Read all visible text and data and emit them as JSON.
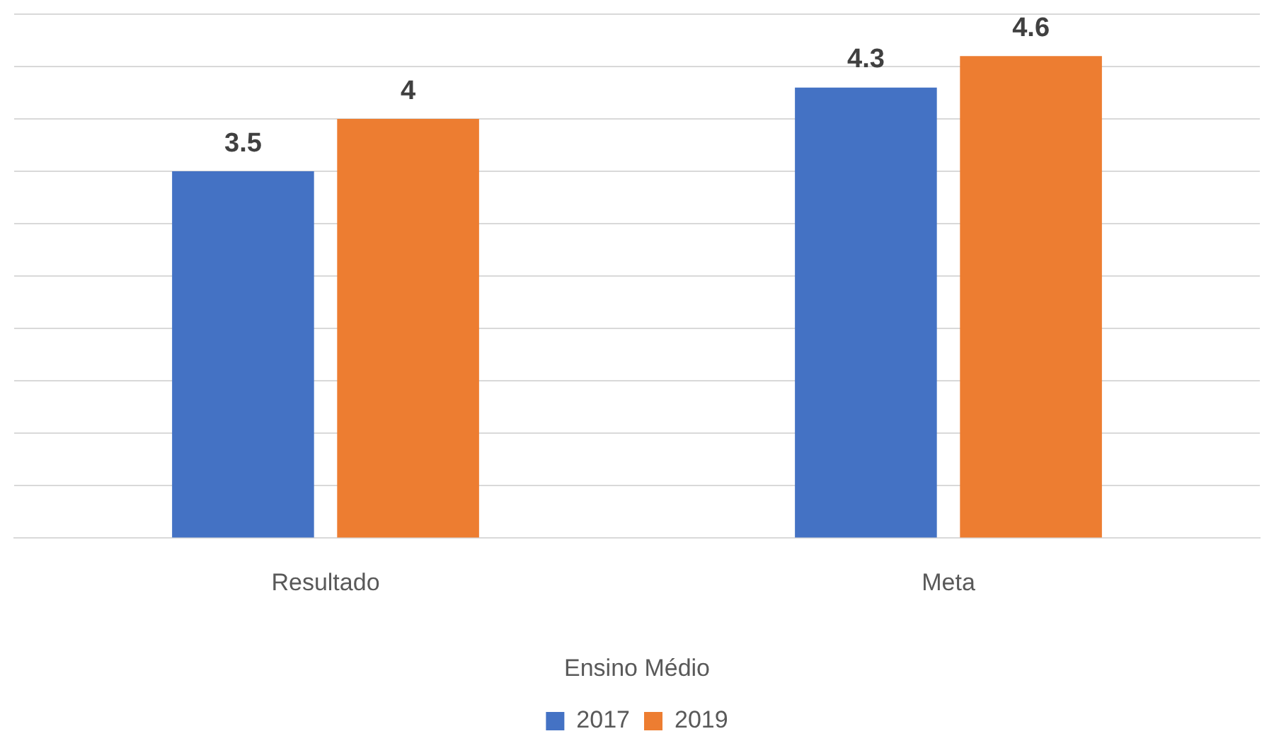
{
  "chart_data": {
    "type": "bar",
    "xlabel": "Ensino Médio",
    "categories": [
      "Resultado",
      "Meta"
    ],
    "series": [
      {
        "name": "2017",
        "color": "#4472c4",
        "values": [
          3.5,
          4.3
        ]
      },
      {
        "name": "2019",
        "color": "#ed7d31",
        "values": [
          4,
          4.6
        ]
      }
    ],
    "ylim": [
      0,
      5
    ],
    "yticks": [
      {
        "value": 0,
        "label": null
      },
      {
        "value": 0.5,
        "label": null
      },
      {
        "value": 1,
        "label": null
      },
      {
        "value": 1.5,
        "label": null
      },
      {
        "value": 2,
        "label": null
      },
      {
        "value": 2.5,
        "label": null
      },
      {
        "value": 3,
        "label": null
      },
      {
        "value": 3.5,
        "label": null
      },
      {
        "value": 4,
        "label": null
      },
      {
        "value": 4.5,
        "label": null
      },
      {
        "value": 5,
        "label": null
      }
    ],
    "tick_labels": "x",
    "grid": "y",
    "legend": "bottom",
    "data_labels": true
  }
}
